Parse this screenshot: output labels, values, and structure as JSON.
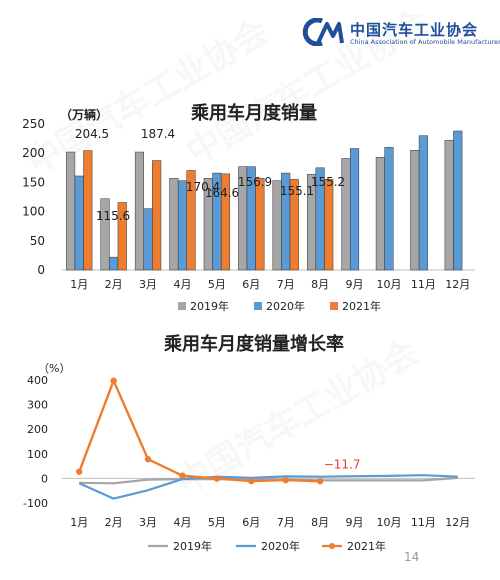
{
  "header": {
    "org_name": "中国汽车工业协会",
    "org_en": "China Association of Automobile Manufacturers",
    "logo_letters": "CM",
    "watermark": "中国汽车工业协会"
  },
  "page_number": "14",
  "colors": {
    "y2019_bar": "#a6a6a6",
    "y2020_bar": "#5b9bd5",
    "y2021_bar": "#ed7d31",
    "y2019_line": "#a6a6a6",
    "y2020_line": "#5b9bd5",
    "y2021_line": "#ed7d31",
    "brand": "#1f4e9a",
    "highlight_label": "#e03c31"
  },
  "chart_data": [
    {
      "type": "bar",
      "title": "乘用车月度销量",
      "ylabel": "（万辆）",
      "ylim": [
        0,
        250
      ],
      "yticks": [
        0,
        50,
        100,
        150,
        200,
        250
      ],
      "categories": [
        "1月",
        "2月",
        "3月",
        "4月",
        "5月",
        "6月",
        "7月",
        "8月",
        "9月",
        "10月",
        "11月",
        "12月"
      ],
      "series": [
        {
          "name": "2019年",
          "values": [
            202,
            122,
            202,
            157,
            157,
            177,
            153,
            164,
            191,
            193,
            205,
            222
          ]
        },
        {
          "name": "2020年",
          "values": [
            161,
            22,
            105,
            153,
            166,
            177,
            166,
            175,
            208,
            210,
            230,
            238
          ]
        },
        {
          "name": "2021年",
          "values": [
            204.5,
            115.6,
            187.4,
            170.4,
            164.6,
            156.9,
            155.1,
            155.2,
            null,
            null,
            null,
            null
          ]
        }
      ],
      "data_labels": [
        "204.5",
        "115.6",
        "187.4",
        "170.4",
        "164.6",
        "156.9",
        "155.1",
        "155.2"
      ],
      "legend": "bottom",
      "grid": false
    },
    {
      "type": "line",
      "title": "乘用车月度销量增长率",
      "ylabel": "（%）",
      "ylim": [
        -100,
        400
      ],
      "yticks": [
        -100,
        0,
        100,
        200,
        300,
        400
      ],
      "categories": [
        "1月",
        "2月",
        "3月",
        "4月",
        "5月",
        "6月",
        "7月",
        "8月",
        "9月",
        "10月",
        "11月",
        "12月"
      ],
      "series": [
        {
          "name": "2019年",
          "values": [
            -18,
            -20,
            -5,
            -3,
            -3,
            -5,
            -5,
            -8,
            -8,
            -8,
            -8,
            2
          ]
        },
        {
          "name": "2020年",
          "values": [
            -20,
            -82,
            -48,
            -3,
            7,
            2,
            8,
            7,
            9,
            10,
            13,
            7
          ]
        },
        {
          "name": "2021年",
          "values": [
            27,
            397,
            78,
            11,
            -1,
            -11,
            -7,
            -11.7,
            null,
            null,
            null,
            null
          ]
        }
      ],
      "annotation": {
        "text": "−11.7",
        "category": "8月"
      },
      "legend": "bottom",
      "grid": false
    }
  ]
}
